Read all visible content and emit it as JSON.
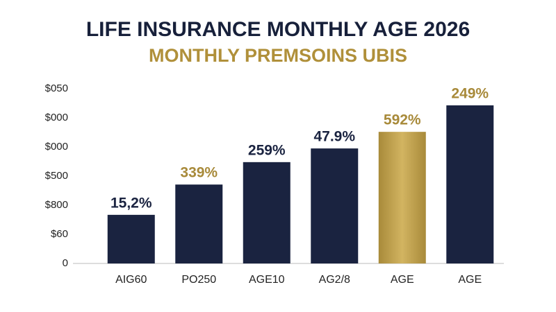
{
  "chart_data": {
    "type": "bar",
    "title": "LIFE INSURANCE MONTHLY AGE 2026",
    "subtitle": "MONTHLY PREMSOINS UBIS",
    "categories": [
      "AIG60",
      "PO250",
      "AGE10",
      "AG2/8",
      "AGE",
      "AGE"
    ],
    "values": [
      1.67,
      2.71,
      3.48,
      3.95,
      4.52,
      5.43
    ],
    "colors": [
      "#1a2340",
      "#1a2340",
      "#1a2340",
      "#1a2340",
      "#b8983e",
      "#1a2340"
    ],
    "annotations": [
      "15,2%",
      "339%",
      "259%",
      "47.9%",
      "592%",
      "249%"
    ],
    "annotation_colors": [
      "#1a2340",
      "#a88a3a",
      "#1a2340",
      "#1a2340",
      "#a88a3a",
      "#a88a3a"
    ],
    "ylim": [
      0,
      6
    ],
    "yticks": [
      0,
      {
        "value": 1,
        "label": "$60"
      },
      {
        "value": 2,
        "label": "$800"
      },
      {
        "value": 3,
        "label": "$500"
      },
      {
        "value": 4,
        "label": "$000"
      },
      {
        "value": 5,
        "label": "$000"
      },
      {
        "value": 6,
        "label": "$050"
      }
    ],
    "grid": false
  }
}
